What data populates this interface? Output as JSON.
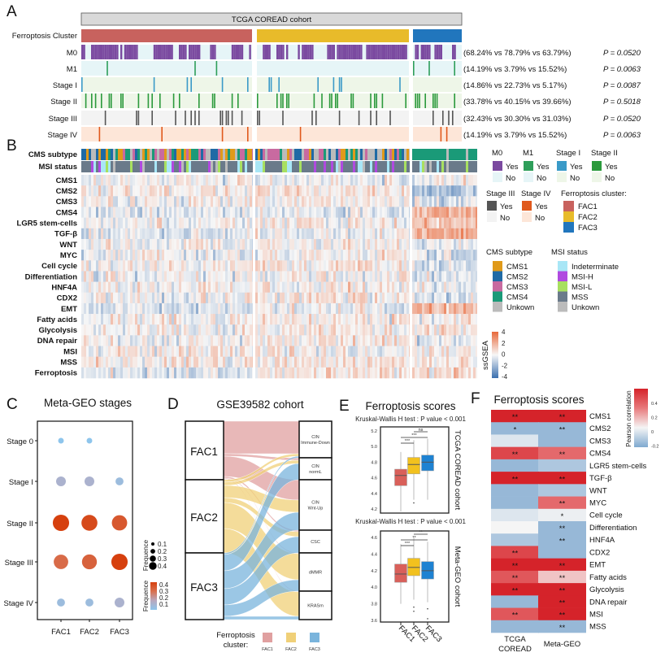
{
  "panel_letters": {
    "a": "A",
    "b": "B",
    "c": "C",
    "d": "D",
    "e": "E",
    "f": "F"
  },
  "panel_a": {
    "title": "TCGA COREAD cohort",
    "cluster_label": "Ferroptosis Cluster",
    "cluster_colors": [
      "#c8625e",
      "#e8bb2a",
      "#2176bd"
    ],
    "rows": [
      {
        "label": "M0",
        "stats": "(68.24% vs 78.79% vs 63.79%)",
        "p": "P = 0.0520",
        "fractions": [
          0.6824,
          0.7879,
          0.6379
        ],
        "color": "#7b4aa0",
        "bg": "#e6f5f7"
      },
      {
        "label": "M1",
        "stats": "(14.19% vs 3.79% vs 15.52%)",
        "p": "P = 0.0063",
        "fractions": [
          0.1419,
          0.0379,
          0.1552
        ],
        "color": "#2e9e5a",
        "bg": "#e6f5f7"
      },
      {
        "label": "Stage I",
        "stats": "(14.86% vs 22.73% vs 5.17%)",
        "p": "P = 0.0087",
        "fractions": [
          0.1486,
          0.2273,
          0.0517
        ],
        "color": "#3a9ac8",
        "bg": "#eef6e8"
      },
      {
        "label": "Stage II",
        "stats": "(33.78% vs 40.15% vs 39.66%)",
        "p": "P = 0.5018",
        "fractions": [
          0.3378,
          0.4015,
          0.3966
        ],
        "color": "#2b9a3c",
        "bg": "#eef6e8"
      },
      {
        "label": "Stage III",
        "stats": "(32.43% vs 30.30% vs 31.03%)",
        "p": "P = 0.0520",
        "fractions": [
          0.3243,
          0.303,
          0.3103
        ],
        "color": "#555555",
        "bg": "#f3f3f3"
      },
      {
        "label": "Stage IV",
        "stats": "(14.19% vs 3.79% vs 15.52%)",
        "p": "P = 0.0063",
        "fractions": [
          0.1419,
          0.0379,
          0.1552
        ],
        "color": "#e0591c",
        "bg": "#fde6d8"
      }
    ]
  },
  "panel_b": {
    "annotation_labels": [
      "CMS subtype",
      "MSI status"
    ],
    "rows": [
      "CMS1",
      "CMS2",
      "CMS3",
      "CMS4",
      "LGR5 stem-cells",
      "TGF-β",
      "WNT",
      "MYC",
      "Cell cycle",
      "Differentiation",
      "HNF4A",
      "CDX2",
      "EMT",
      "Fatty acids",
      "Glycolysis",
      "DNA repair",
      "MSI",
      "MSS",
      "Ferroptosis"
    ],
    "yesno_legends": [
      {
        "title": "M0",
        "yes": "Yes",
        "no": "No",
        "color": "#7b4aa0",
        "bg": "#e6f5f7"
      },
      {
        "title": "M1",
        "yes": "Yes",
        "no": "No",
        "color": "#2e9e5a",
        "bg": "#e6f5f7"
      },
      {
        "title": "Stage I",
        "yes": "Yes",
        "no": "No",
        "color": "#3a9ac8",
        "bg": "#eef6e8"
      },
      {
        "title": "Stage II",
        "yes": "Yes",
        "no": "No",
        "color": "#2b9a3c",
        "bg": "#eef6e8"
      },
      {
        "title": "Stage III",
        "yes": "Yes",
        "no": "No",
        "color": "#555555",
        "bg": "#f3f3f3"
      },
      {
        "title": "Stage IV",
        "yes": "Yes",
        "no": "No",
        "color": "#e0591c",
        "bg": "#fde6d8"
      }
    ],
    "cluster_legend": {
      "title": "Ferroptosis cluster:",
      "items": [
        "FAC1",
        "FAC2",
        "FAC3"
      ]
    },
    "cms_legend": {
      "title": "CMS subtype",
      "items": [
        {
          "label": "CMS1",
          "color": "#e09a1a"
        },
        {
          "label": "CMS2",
          "color": "#1f6aa5"
        },
        {
          "label": "CMS3",
          "color": "#c86aa0"
        },
        {
          "label": "CMS4",
          "color": "#1a9a78"
        },
        {
          "label": "Unkown",
          "color": "#bbbbbb"
        }
      ]
    },
    "msi_legend": {
      "title": "MSI status",
      "items": [
        {
          "label": "Indeterminate",
          "color": "#a8e6f6"
        },
        {
          "label": "MSI-H",
          "color": "#b04ae0"
        },
        {
          "label": "MSI-L",
          "color": "#a8e060"
        },
        {
          "label": "MSS",
          "color": "#6a7a8a"
        },
        {
          "label": "Unkown",
          "color": "#bbbbbb"
        }
      ]
    },
    "colorbar": {
      "label": "ssGSEA",
      "ticks": [
        "4",
        "2",
        "0",
        "-2",
        "-4"
      ],
      "range": [
        -4,
        4
      ],
      "colors": [
        "#3a6fae",
        "#f7f7f7",
        "#e8683a"
      ]
    }
  },
  "chart_data": [
    {
      "panel": "C",
      "type": "scatter",
      "title": "Meta-GEO stages",
      "categories": [
        "FAC1",
        "FAC2",
        "FAC3"
      ],
      "rows": [
        "Stage 0",
        "Stage I",
        "Stage II",
        "Stage III",
        "Stage IV"
      ],
      "values": [
        [
          0.05,
          0.05,
          null
        ],
        [
          0.15,
          0.15,
          0.1
        ],
        [
          0.42,
          0.4,
          0.37
        ],
        [
          0.33,
          0.35,
          0.42
        ],
        [
          0.1,
          0.1,
          0.15
        ]
      ],
      "size_legend": {
        "title": "Frequence",
        "ticks": [
          "0.1",
          "0.2",
          "0.3",
          "0.4"
        ]
      },
      "color_legend": {
        "title": "Frequence",
        "ticks": [
          "0.4",
          "0.3",
          "0.2",
          "0.1"
        ]
      }
    },
    {
      "panel": "D",
      "type": "sankey",
      "title": "GSE39582 cohort",
      "sources": [
        "FAC1",
        "FAC2",
        "FAC3"
      ],
      "source_colors": [
        "#e0a0a0",
        "#f0d078",
        "#7ab4dc"
      ],
      "targets": [
        "CIN Immune-Down",
        "CIN normL",
        "CIN Wnt-Up",
        "CSC",
        "dMMR",
        "KRASm"
      ],
      "target_lines": [
        [
          "CIN",
          "Immune-Down"
        ],
        [
          "CIN",
          "normL"
        ],
        [
          "CIN",
          "Wnt-Up"
        ],
        [
          "CSC"
        ],
        [
          "dMMR"
        ],
        [
          "KRASm"
        ]
      ],
      "flows": [
        [
          40,
          3,
          25,
          2,
          1,
          1
        ],
        [
          3,
          4,
          15,
          6,
          32,
          30
        ],
        [
          2,
          20,
          22,
          20,
          14,
          4
        ]
      ],
      "legend": {
        "title_lines": [
          "Ferroptosis",
          "cluster:"
        ],
        "items": [
          "FAC1",
          "FAC2",
          "FAC3"
        ]
      }
    },
    {
      "panel": "E",
      "type": "box",
      "title": "Ferroptosis scores",
      "categories": [
        "FAC1",
        "FAC2",
        "FAC3"
      ],
      "colors": [
        "#d9605a",
        "#f2c11e",
        "#1e82d2"
      ],
      "plots": [
        {
          "subtitle": "Kruskal-Wallis H test :  P value < 0.001",
          "side_label": "TCGA COREAD cohort",
          "ylim": [
            4.15,
            5.25
          ],
          "yticks": [
            4.2,
            4.4,
            4.6,
            4.8,
            5.0,
            5.2
          ],
          "boxes": [
            {
              "low": 4.17,
              "q1": 4.5,
              "median": 4.63,
              "q3": 4.71,
              "high": 4.93,
              "outliers": []
            },
            {
              "low": 4.32,
              "q1": 4.65,
              "median": 4.77,
              "q3": 4.86,
              "high": 5.08,
              "outliers": [
                4.28
              ]
            },
            {
              "low": 4.32,
              "q1": 4.69,
              "median": 4.8,
              "q3": 4.89,
              "high": 5.1,
              "outliers": []
            }
          ],
          "significance": [
            {
              "pair": [
                0,
                1
              ],
              "label": "***"
            },
            {
              "pair": [
                0,
                2
              ],
              "label": "***"
            },
            {
              "pair": [
                1,
                2
              ],
              "label": "ns"
            }
          ]
        },
        {
          "subtitle": "Kruskal-Wallis H test :  P value < 0.001",
          "side_label": "Meta-GEO cohort",
          "ylim": [
            3.58,
            4.68
          ],
          "yticks": [
            3.6,
            3.8,
            4.0,
            4.2,
            4.4,
            4.6
          ],
          "boxes": [
            {
              "low": 3.8,
              "q1": 4.06,
              "median": 4.16,
              "q3": 4.28,
              "high": 4.52,
              "outliers": []
            },
            {
              "low": 3.85,
              "q1": 4.14,
              "median": 4.24,
              "q3": 4.35,
              "high": 4.6,
              "outliers": [
                3.76,
                3.71
              ]
            },
            {
              "low": 3.82,
              "q1": 4.1,
              "median": 4.2,
              "q3": 4.31,
              "high": 4.55,
              "outliers": [
                3.74,
                3.62
              ]
            }
          ],
          "significance": [
            {
              "pair": [
                0,
                1
              ],
              "label": "***"
            },
            {
              "pair": [
                0,
                2
              ],
              "label": "**"
            },
            {
              "pair": [
                1,
                2
              ],
              "label": "**"
            }
          ]
        }
      ]
    },
    {
      "panel": "F",
      "type": "heatmap",
      "title": "Ferroptosis scores",
      "columns": [
        [
          "TCGA",
          "COREAD"
        ],
        [
          "Meta-GEO"
        ]
      ],
      "rows": [
        "CMS1",
        "CMS2",
        "CMS3",
        "CMS4",
        "LGR5 stem-cells",
        "TGF-β",
        "WNT",
        "MYC",
        "Cell cycle",
        "Differentiation",
        "HNF4A",
        "CDX2",
        "EMT",
        "Fatty acids",
        "Glycolysis",
        "DNA repair",
        "MSI",
        "MSS"
      ],
      "values": [
        [
          0.5,
          0.5
        ],
        [
          -0.2,
          -0.2
        ],
        [
          -0.05,
          -0.2
        ],
        [
          0.4,
          0.3
        ],
        [
          -0.2,
          -0.15
        ],
        [
          0.5,
          0.5
        ],
        [
          -0.2,
          -0.15
        ],
        [
          -0.2,
          0.3
        ],
        [
          -0.05,
          -0.02
        ],
        [
          0.0,
          -0.2
        ],
        [
          -0.15,
          -0.2
        ],
        [
          0.4,
          -0.2
        ],
        [
          0.5,
          0.5
        ],
        [
          0.35,
          0.1
        ],
        [
          0.5,
          0.5
        ],
        [
          -0.2,
          0.5
        ],
        [
          0.35,
          0.5
        ],
        [
          -0.2,
          -0.2
        ]
      ],
      "stars": [
        [
          "**",
          "**"
        ],
        [
          "*",
          "**"
        ],
        [
          "",
          ""
        ],
        [
          "**",
          "**"
        ],
        [
          "",
          ""
        ],
        [
          "**",
          "**"
        ],
        [
          "",
          ""
        ],
        [
          "",
          "**"
        ],
        [
          "",
          "*"
        ],
        [
          "",
          "**"
        ],
        [
          "",
          "**"
        ],
        [
          "**",
          ""
        ],
        [
          "**",
          "**"
        ],
        [
          "**",
          "**"
        ],
        [
          "**",
          "**"
        ],
        [
          "",
          "**"
        ],
        [
          "**",
          "**"
        ],
        [
          "",
          "**"
        ]
      ],
      "colorbar": {
        "title": "Pearson  correlation",
        "ticks": [
          "0.4",
          "0.2",
          "0",
          "-0.2"
        ]
      }
    }
  ]
}
